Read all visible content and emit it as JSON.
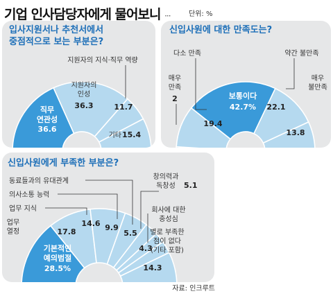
{
  "header": {
    "title": "기업 인사담당자에게 물어보니",
    "dots": "···",
    "unit": "단위: %"
  },
  "source": "자료: 인크루트",
  "colors": {
    "highlight": "#3a9ad9",
    "slice": "#b5d9ef",
    "divider": "#ffffff",
    "panel": "#e6e7e8",
    "title_blue": "#1d6fb8"
  },
  "chart_data": [
    {
      "type": "pie",
      "subtype": "half-donut",
      "title": [
        "입사지원서나 추천서에서",
        "중점적으로 보는 부분은?"
      ],
      "slices": [
        {
          "label": "직무 연관성",
          "value": 36.6,
          "highlight": true
        },
        {
          "label": "지원자의 인성",
          "value": 36.3
        },
        {
          "label": "지원자의 지식·직무 역량",
          "value": 11.7
        },
        {
          "label": "기타",
          "value": 15.4
        }
      ]
    },
    {
      "type": "pie",
      "subtype": "half-donut",
      "title": [
        "신입사원에 대한 만족도는?"
      ],
      "slices": [
        {
          "label": "매우 만족",
          "value": 2.0
        },
        {
          "label": "다소 만족",
          "value": 19.4
        },
        {
          "label": "보통이다",
          "value": 42.7,
          "highlight": true
        },
        {
          "label": "약간 불만족",
          "value": 22.1
        },
        {
          "label": "매우 불만족",
          "value": 13.8
        }
      ]
    },
    {
      "type": "pie",
      "subtype": "half-donut",
      "title": [
        "신입사원에게 부족한 부분은?"
      ],
      "slices": [
        {
          "label": "기본적인 예의범절",
          "value": 28.5,
          "highlight": true
        },
        {
          "label": "업무 열정",
          "value": 17.8
        },
        {
          "label": "업무 지식",
          "value": 14.6
        },
        {
          "label": "의사소통 능력",
          "value": 9.9
        },
        {
          "label": "동료들과의 유대관계",
          "value": 5.5
        },
        {
          "label": "회사에 대한 충성심",
          "value": 4.3
        },
        {
          "label": "창의력과 독창성",
          "value": 5.1
        },
        {
          "label": "별로 부족한 점이 없다 (기타 포함)",
          "value": 14.3
        }
      ]
    }
  ]
}
